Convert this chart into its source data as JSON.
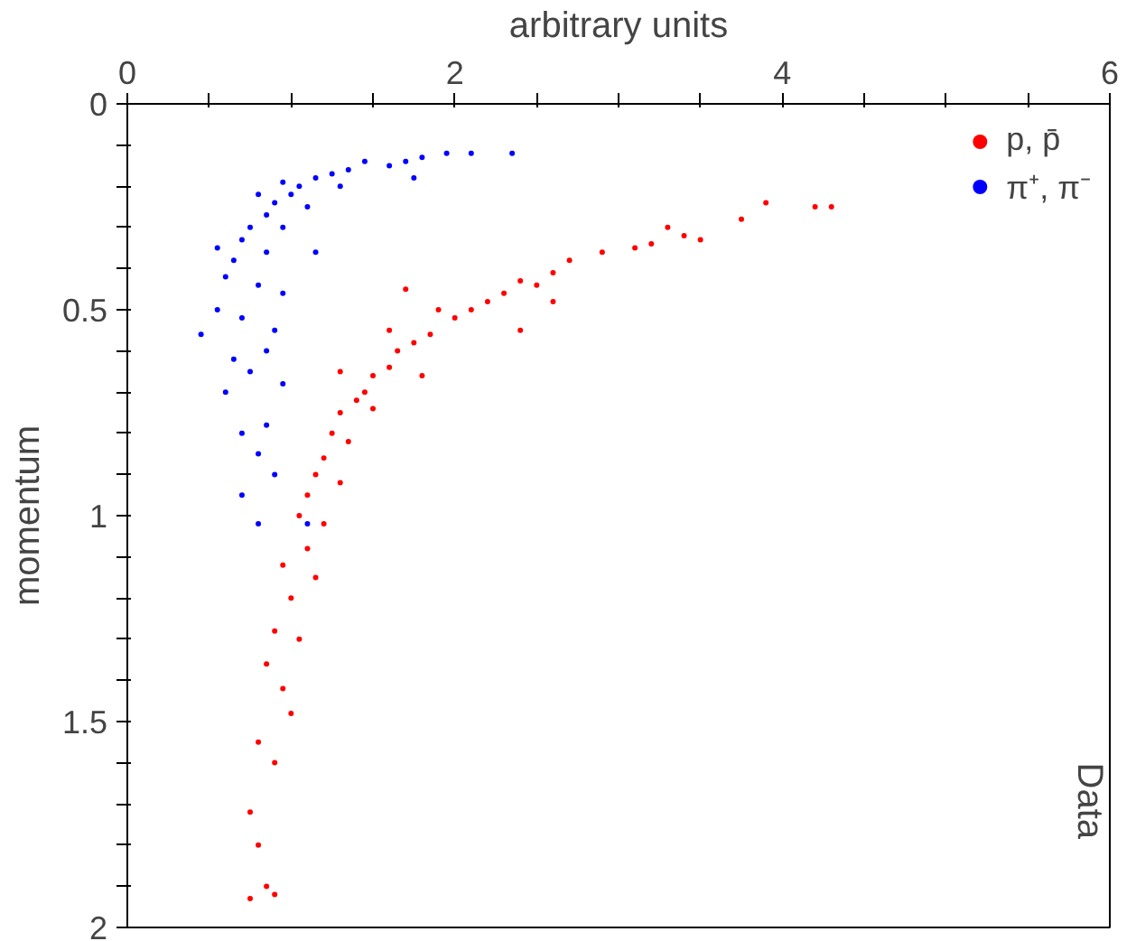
{
  "chart_data": {
    "type": "scatter",
    "xlabel": "arbitrary units",
    "ylabel": "momentum",
    "marker": "circle",
    "legend": "top right",
    "grid": false,
    "xlim": [
      0,
      6
    ],
    "ylim": [
      2,
      0
    ],
    "xticks": [
      0,
      {
        "value": 0.5,
        "label": null
      },
      {
        "value": 1,
        "label": null
      },
      {
        "value": 1.5,
        "label": null
      },
      2,
      {
        "value": 2.5,
        "label": null
      },
      {
        "value": 3,
        "label": null
      },
      {
        "value": 3.5,
        "label": null
      },
      4,
      {
        "value": 4.5,
        "label": null
      },
      {
        "value": 5,
        "label": null
      },
      {
        "value": 5.5,
        "label": null
      },
      6
    ],
    "yticks": [
      0,
      {
        "value": 0.1,
        "label": null
      },
      {
        "value": 0.2,
        "label": null
      },
      {
        "value": 0.3,
        "label": null
      },
      {
        "value": 0.4,
        "label": null
      },
      0.5,
      {
        "value": 0.6,
        "label": null
      },
      {
        "value": 0.7,
        "label": null
      },
      {
        "value": 0.8,
        "label": null
      },
      {
        "value": 0.9,
        "label": null
      },
      1,
      {
        "value": 1.1,
        "label": null
      },
      {
        "value": 1.2,
        "label": null
      },
      {
        "value": 1.3,
        "label": null
      },
      {
        "value": 1.4,
        "label": null
      },
      1.5,
      {
        "value": 1.6,
        "label": null
      },
      {
        "value": 1.7,
        "label": null
      },
      {
        "value": 1.8,
        "label": null
      },
      {
        "value": 1.9,
        "label": null
      },
      2
    ],
    "annotations": [
      "Data"
    ],
    "series": [
      {
        "name": "p, p̄",
        "color": "#ff0000",
        "x": [
          4.3,
          4.2,
          3.9,
          3.75,
          3.5,
          3.4,
          3.3,
          3.2,
          3.1,
          2.9,
          2.7,
          2.6,
          2.5,
          2.4,
          2.3,
          2.2,
          2.1,
          2.0,
          1.9,
          1.85,
          1.75,
          1.65,
          1.6,
          1.5,
          1.45,
          1.4,
          1.3,
          1.5,
          1.25,
          1.35,
          1.2,
          1.15,
          1.3,
          1.1,
          1.05,
          1.2,
          1.1,
          0.95,
          1.15,
          1.0,
          0.9,
          1.05,
          0.85,
          0.95,
          1.0,
          0.8,
          0.9,
          0.75,
          0.8,
          0.85,
          0.75,
          0.9,
          1.7,
          1.8,
          1.6,
          2.4,
          2.6,
          1.3
        ],
        "values": [
          0.25,
          0.25,
          0.24,
          0.28,
          0.33,
          0.32,
          0.3,
          0.34,
          0.35,
          0.36,
          0.38,
          0.41,
          0.44,
          0.43,
          0.46,
          0.48,
          0.5,
          0.52,
          0.5,
          0.56,
          0.58,
          0.6,
          0.64,
          0.66,
          0.7,
          0.72,
          0.75,
          0.74,
          0.8,
          0.82,
          0.86,
          0.9,
          0.92,
          0.95,
          1.0,
          1.02,
          1.08,
          1.12,
          1.15,
          1.2,
          1.28,
          1.3,
          1.36,
          1.42,
          1.48,
          1.55,
          1.6,
          1.72,
          1.8,
          1.9,
          1.93,
          1.92,
          0.45,
          0.66,
          0.55,
          0.55,
          0.48,
          0.65
        ]
      },
      {
        "name": "π⁺, π⁻",
        "color": "#0000ff",
        "x": [
          2.35,
          2.1,
          1.95,
          1.8,
          1.7,
          1.6,
          1.75,
          1.45,
          1.35,
          1.25,
          1.15,
          1.3,
          1.05,
          1.0,
          0.95,
          0.9,
          1.1,
          0.85,
          0.8,
          0.75,
          0.95,
          0.7,
          0.55,
          0.65,
          0.85,
          1.15,
          0.6,
          0.8,
          0.95,
          0.55,
          0.7,
          0.9,
          0.45,
          0.85,
          0.65,
          0.75,
          0.6,
          0.95,
          0.7,
          0.8,
          0.9,
          0.7,
          0.8,
          1.1,
          0.85
        ],
        "values": [
          0.12,
          0.12,
          0.12,
          0.13,
          0.14,
          0.15,
          0.18,
          0.14,
          0.16,
          0.17,
          0.18,
          0.2,
          0.2,
          0.22,
          0.19,
          0.24,
          0.25,
          0.27,
          0.22,
          0.3,
          0.3,
          0.33,
          0.35,
          0.38,
          0.36,
          0.36,
          0.42,
          0.44,
          0.46,
          0.5,
          0.52,
          0.55,
          0.56,
          0.6,
          0.62,
          0.65,
          0.7,
          0.68,
          0.8,
          0.85,
          0.9,
          0.95,
          1.02,
          1.02,
          0.78
        ]
      }
    ]
  }
}
